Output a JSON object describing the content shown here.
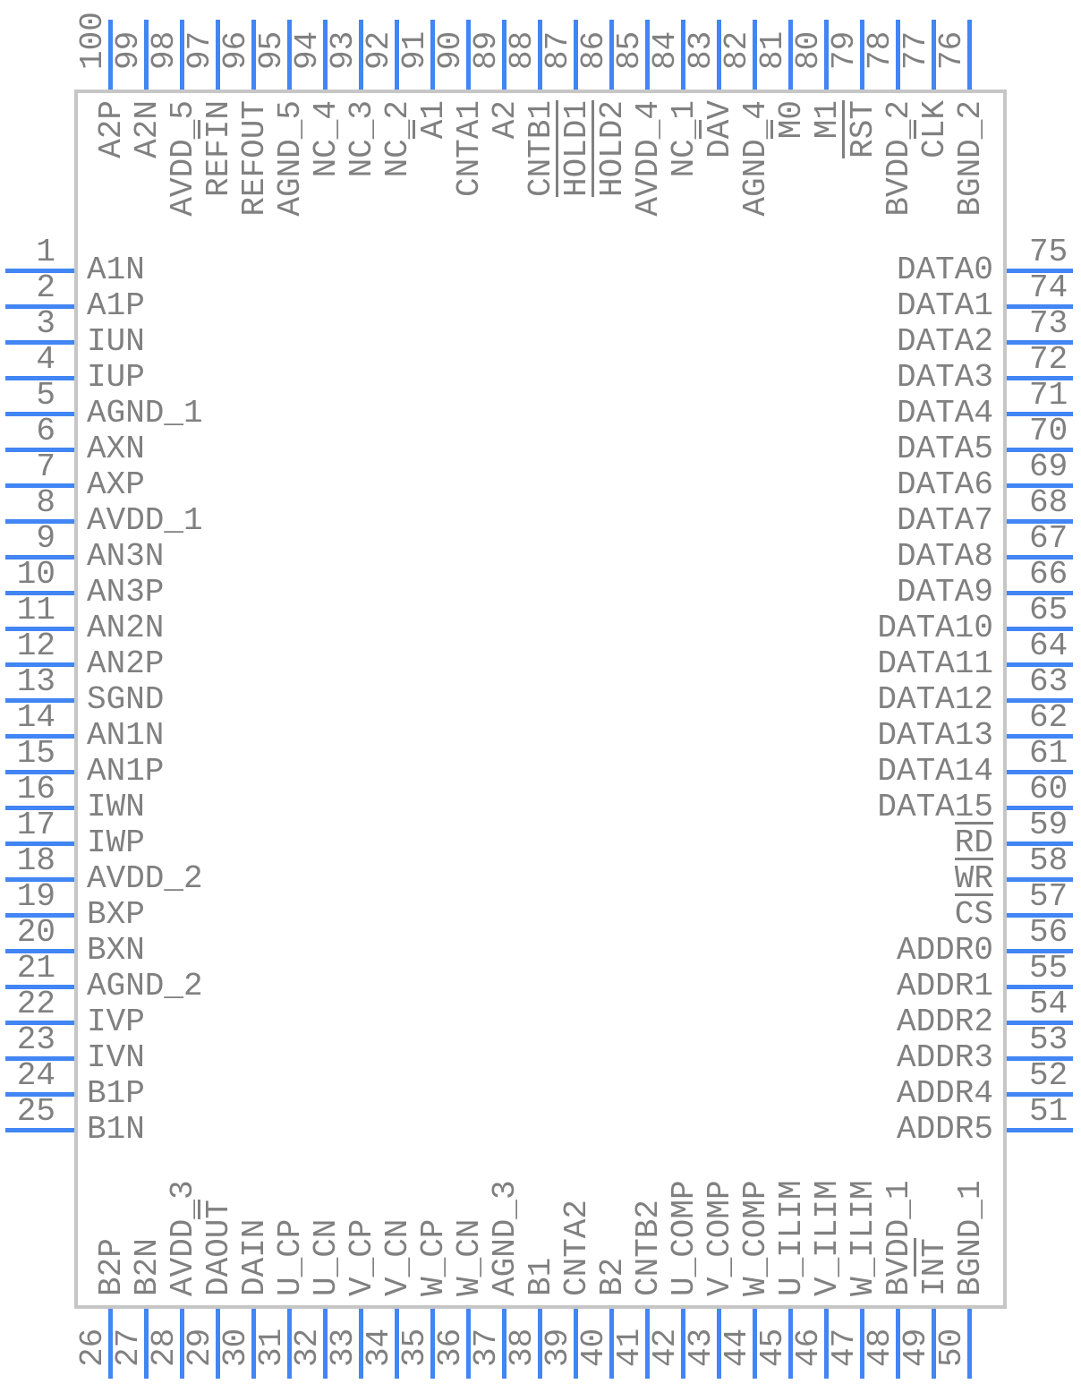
{
  "diagram": {
    "type": "ic-pinout-100",
    "colors": {
      "pin": "#4285f4",
      "text": "#808080",
      "body_border": "#c6c6c6",
      "background": "#ffffff"
    }
  },
  "pins": {
    "left": [
      {
        "num": 1,
        "label": [
          {
            "t": "A1N"
          }
        ]
      },
      {
        "num": 2,
        "label": [
          {
            "t": "A1P"
          }
        ]
      },
      {
        "num": 3,
        "label": [
          {
            "t": "IUN"
          }
        ]
      },
      {
        "num": 4,
        "label": [
          {
            "t": "IUP"
          }
        ]
      },
      {
        "num": 5,
        "label": [
          {
            "t": "AGND_1"
          }
        ]
      },
      {
        "num": 6,
        "label": [
          {
            "t": "AXN"
          }
        ]
      },
      {
        "num": 7,
        "label": [
          {
            "t": "AXP"
          }
        ]
      },
      {
        "num": 8,
        "label": [
          {
            "t": "AVDD_1"
          }
        ]
      },
      {
        "num": 9,
        "label": [
          {
            "t": "AN3N"
          }
        ]
      },
      {
        "num": 10,
        "label": [
          {
            "t": "AN3P"
          }
        ]
      },
      {
        "num": 11,
        "label": [
          {
            "t": "AN2N"
          }
        ]
      },
      {
        "num": 12,
        "label": [
          {
            "t": "AN2P"
          }
        ]
      },
      {
        "num": 13,
        "label": [
          {
            "t": "SGND"
          }
        ]
      },
      {
        "num": 14,
        "label": [
          {
            "t": "AN1N"
          }
        ]
      },
      {
        "num": 15,
        "label": [
          {
            "t": "AN1P"
          }
        ]
      },
      {
        "num": 16,
        "label": [
          {
            "t": "IWN"
          }
        ]
      },
      {
        "num": 17,
        "label": [
          {
            "t": "IWP"
          }
        ]
      },
      {
        "num": 18,
        "label": [
          {
            "t": "AVDD_2"
          }
        ]
      },
      {
        "num": 19,
        "label": [
          {
            "t": "BXP"
          }
        ]
      },
      {
        "num": 20,
        "label": [
          {
            "t": "BXN"
          }
        ]
      },
      {
        "num": 21,
        "label": [
          {
            "t": "AGND_2"
          }
        ]
      },
      {
        "num": 22,
        "label": [
          {
            "t": "IVP"
          }
        ]
      },
      {
        "num": 23,
        "label": [
          {
            "t": "IVN"
          }
        ]
      },
      {
        "num": 24,
        "label": [
          {
            "t": "B1P"
          }
        ]
      },
      {
        "num": 25,
        "label": [
          {
            "t": "B1N"
          }
        ]
      }
    ],
    "right": [
      {
        "num": 75,
        "label": [
          {
            "t": "DATA0"
          }
        ]
      },
      {
        "num": 74,
        "label": [
          {
            "t": "DATA1"
          }
        ]
      },
      {
        "num": 73,
        "label": [
          {
            "t": "DATA2"
          }
        ]
      },
      {
        "num": 72,
        "label": [
          {
            "t": "DATA3"
          }
        ]
      },
      {
        "num": 71,
        "label": [
          {
            "t": "DATA4"
          }
        ]
      },
      {
        "num": 70,
        "label": [
          {
            "t": "DATA5"
          }
        ]
      },
      {
        "num": 69,
        "label": [
          {
            "t": "DATA6"
          }
        ]
      },
      {
        "num": 68,
        "label": [
          {
            "t": "DATA7"
          }
        ]
      },
      {
        "num": 67,
        "label": [
          {
            "t": "DATA8"
          }
        ]
      },
      {
        "num": 66,
        "label": [
          {
            "t": "DATA9"
          }
        ]
      },
      {
        "num": 65,
        "label": [
          {
            "t": "DATA10"
          }
        ]
      },
      {
        "num": 64,
        "label": [
          {
            "t": "DATA11"
          }
        ]
      },
      {
        "num": 63,
        "label": [
          {
            "t": "DATA12"
          }
        ]
      },
      {
        "num": 62,
        "label": [
          {
            "t": "DATA13"
          }
        ]
      },
      {
        "num": 61,
        "label": [
          {
            "t": "DATA14"
          }
        ]
      },
      {
        "num": 60,
        "label": [
          {
            "t": "DATA15"
          }
        ]
      },
      {
        "num": 59,
        "label": [
          {
            "t": "RD",
            "bar": true
          }
        ]
      },
      {
        "num": 58,
        "label": [
          {
            "t": "WR",
            "bar": true
          }
        ]
      },
      {
        "num": 57,
        "label": [
          {
            "t": "CS",
            "bar": true
          }
        ]
      },
      {
        "num": 56,
        "label": [
          {
            "t": "ADDR0"
          }
        ]
      },
      {
        "num": 55,
        "label": [
          {
            "t": "ADDR1"
          }
        ]
      },
      {
        "num": 54,
        "label": [
          {
            "t": "ADDR2"
          }
        ]
      },
      {
        "num": 53,
        "label": [
          {
            "t": "ADDR3"
          }
        ]
      },
      {
        "num": 52,
        "label": [
          {
            "t": "ADDR4"
          }
        ]
      },
      {
        "num": 51,
        "label": [
          {
            "t": "ADDR5"
          }
        ]
      }
    ],
    "top": [
      {
        "num": 100,
        "label": [
          {
            "t": "A2P"
          }
        ]
      },
      {
        "num": 99,
        "label": [
          {
            "t": "A2N"
          }
        ]
      },
      {
        "num": 98,
        "label": [
          {
            "t": "AVDD_5"
          }
        ]
      },
      {
        "num": 97,
        "label": [
          {
            "t": "REF"
          },
          {
            "t": "I",
            "bar": true
          },
          {
            "t": "N"
          }
        ]
      },
      {
        "num": 96,
        "label": [
          {
            "t": "REFOUT"
          }
        ]
      },
      {
        "num": 95,
        "label": [
          {
            "t": "AGND_5"
          }
        ]
      },
      {
        "num": 94,
        "label": [
          {
            "t": "NC_4"
          }
        ]
      },
      {
        "num": 93,
        "label": [
          {
            "t": "NC_3"
          }
        ]
      },
      {
        "num": 92,
        "label": [
          {
            "t": "NC_2"
          }
        ]
      },
      {
        "num": 91,
        "label": [
          {
            "t": "A",
            "bar": true
          },
          {
            "t": "1"
          }
        ]
      },
      {
        "num": 90,
        "label": [
          {
            "t": "CNTA1"
          }
        ]
      },
      {
        "num": 89,
        "label": [
          {
            "t": "A2"
          }
        ]
      },
      {
        "num": 88,
        "label": [
          {
            "t": "CNTB1"
          }
        ]
      },
      {
        "num": 87,
        "label": [
          {
            "t": "HOLD1",
            "bar": true
          }
        ]
      },
      {
        "num": 86,
        "label": [
          {
            "t": "HOLD2",
            "bar": true
          }
        ]
      },
      {
        "num": 85,
        "label": [
          {
            "t": "AVDD_4"
          }
        ]
      },
      {
        "num": 84,
        "label": [
          {
            "t": "NC_1"
          }
        ]
      },
      {
        "num": 83,
        "label": [
          {
            "t": "D"
          },
          {
            "t": "A",
            "bar": true
          },
          {
            "t": "V"
          }
        ]
      },
      {
        "num": 82,
        "label": [
          {
            "t": "AGND_4"
          }
        ]
      },
      {
        "num": 81,
        "label": [
          {
            "t": "M",
            "bar": true
          },
          {
            "t": "0"
          }
        ]
      },
      {
        "num": 80,
        "label": [
          {
            "t": "M1"
          }
        ]
      },
      {
        "num": 79,
        "label": [
          {
            "t": "RST",
            "bar": true
          }
        ]
      },
      {
        "num": 78,
        "label": [
          {
            "t": "BVDD_2"
          }
        ]
      },
      {
        "num": 77,
        "label": [
          {
            "t": "C"
          },
          {
            "t": "L",
            "bar": true
          },
          {
            "t": "K"
          }
        ]
      },
      {
        "num": 76,
        "label": [
          {
            "t": "BGND_2"
          }
        ]
      }
    ],
    "bottom": [
      {
        "num": 26,
        "label": [
          {
            "t": "B2P"
          }
        ]
      },
      {
        "num": 27,
        "label": [
          {
            "t": "B2N"
          }
        ]
      },
      {
        "num": 28,
        "label": [
          {
            "t": "AVDD_3"
          }
        ]
      },
      {
        "num": 29,
        "label": [
          {
            "t": "DAOU"
          },
          {
            "t": "T",
            "bar": true
          }
        ]
      },
      {
        "num": 30,
        "label": [
          {
            "t": "DAIN"
          }
        ]
      },
      {
        "num": 31,
        "label": [
          {
            "t": "U_CP"
          }
        ]
      },
      {
        "num": 32,
        "label": [
          {
            "t": "U_CN"
          }
        ]
      },
      {
        "num": 33,
        "label": [
          {
            "t": "V_CP"
          }
        ]
      },
      {
        "num": 34,
        "label": [
          {
            "t": "V_CN"
          }
        ]
      },
      {
        "num": 35,
        "label": [
          {
            "t": "W_CP"
          }
        ]
      },
      {
        "num": 36,
        "label": [
          {
            "t": "W_CN"
          }
        ]
      },
      {
        "num": 37,
        "label": [
          {
            "t": "AGND_3"
          }
        ]
      },
      {
        "num": 38,
        "label": [
          {
            "t": "B1"
          }
        ]
      },
      {
        "num": 39,
        "label": [
          {
            "t": "CNTA2"
          }
        ]
      },
      {
        "num": 40,
        "label": [
          {
            "t": "B2"
          }
        ]
      },
      {
        "num": 41,
        "label": [
          {
            "t": "CNTB2"
          }
        ]
      },
      {
        "num": 42,
        "label": [
          {
            "t": "U_COMP"
          }
        ]
      },
      {
        "num": 43,
        "label": [
          {
            "t": "V_COMP"
          }
        ]
      },
      {
        "num": 44,
        "label": [
          {
            "t": "W_COMP"
          }
        ]
      },
      {
        "num": 45,
        "label": [
          {
            "t": "U_ILIM"
          }
        ]
      },
      {
        "num": 46,
        "label": [
          {
            "t": "V_ILIM"
          }
        ]
      },
      {
        "num": 47,
        "label": [
          {
            "t": "W_ILIM"
          }
        ]
      },
      {
        "num": 48,
        "label": [
          {
            "t": "BVDD_1"
          }
        ]
      },
      {
        "num": 49,
        "label": [
          {
            "t": "I"
          },
          {
            "t": "NT",
            "bar": true
          }
        ]
      },
      {
        "num": 50,
        "label": [
          {
            "t": "BGND_1"
          }
        ]
      }
    ]
  }
}
